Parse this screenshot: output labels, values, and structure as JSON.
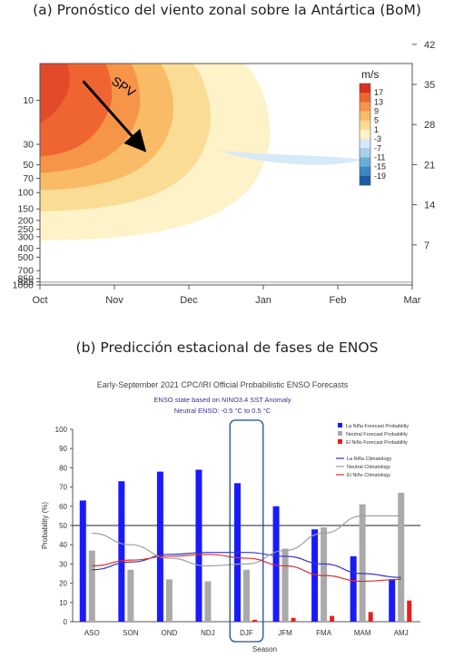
{
  "panel_titles": {
    "a": "(a) Pronóstico del viento zonal sobre la Antártica (BoM)",
    "b": "(b) Predicción estacional de fases de ENOS"
  },
  "chart_data": [
    {
      "type": "heatmap",
      "subtype": "filled-contour",
      "x_ticks": [
        "Oct",
        "Nov",
        "Dec",
        "Jan",
        "Feb",
        "Mar"
      ],
      "y_left_ticks": [
        "10",
        "30",
        "50",
        "70",
        "100",
        "150",
        "200",
        "250",
        "300",
        "400",
        "500",
        "700",
        "850",
        "925",
        "1000"
      ],
      "y_right_ticks": [
        "42",
        "35",
        "28",
        "21",
        "14",
        "7"
      ],
      "colorbar_unit": "m/s",
      "colorbar_levels": [
        "17",
        "13",
        "9",
        "5",
        "1",
        "-3",
        "-7",
        "-11",
        "-15",
        "-19"
      ],
      "colorbar_colors": [
        "#d7301f",
        "#ef6532",
        "#f69447",
        "#f9bb66",
        "#fbdc94",
        "#fdf2c8",
        "#d7e9f7",
        "#a6cfeb",
        "#6aaed8",
        "#3d87c2",
        "#1b5ba6"
      ],
      "annotation": "SPV",
      "arrow": {
        "from": {
          "month": "Oct+0.6",
          "pressure_hPa": 7
        },
        "to": {
          "month": "Nov+0.35",
          "pressure_hPa": 35
        }
      },
      "contours": [
        {
          "level_ms": 1,
          "color": "#fdf2c8"
        },
        {
          "level_ms": 5,
          "color": "#fbdc94"
        },
        {
          "level_ms": 9,
          "color": "#f9bb66"
        },
        {
          "level_ms": 13,
          "color": "#f69447"
        },
        {
          "level_ms": 17,
          "color": "#ef6532"
        },
        {
          "level_ms": 21,
          "color": "#e34a2a"
        }
      ]
    },
    {
      "type": "bar",
      "title": "Early-September 2021 CPC/IRI Official Probabilistic ENSO Forecasts",
      "subtitle_lines": [
        "ENSO state based on NINO3.4 SST Anomaly",
        "Neutral ENSO: -0.5 °C to 0.5 °C"
      ],
      "xlabel": "Season",
      "ylabel": "Probability (%)",
      "ylim": [
        0,
        100
      ],
      "y_ticks": [
        0,
        10,
        20,
        30,
        40,
        50,
        60,
        70,
        80,
        90,
        100
      ],
      "reference_line": 50,
      "categories": [
        "ASO",
        "SON",
        "OND",
        "NDJ",
        "DJF",
        "JFM",
        "FMA",
        "MAM",
        "AMJ"
      ],
      "highlighted_category": "DJF",
      "series": [
        {
          "name": "La Niña Forecast Probability",
          "color": "#1a1aff",
          "values": [
            63,
            73,
            78,
            79,
            72,
            60,
            48,
            34,
            22
          ]
        },
        {
          "name": "Neutral Forecast Probability",
          "color": "#aaaaaa",
          "values": [
            37,
            27,
            22,
            21,
            27,
            38,
            49,
            61,
            67
          ]
        },
        {
          "name": "El Niño Forecast Probability",
          "color": "#e8201a",
          "values": [
            0,
            0,
            0,
            0,
            1,
            2,
            3,
            5,
            11
          ]
        }
      ],
      "climatology": [
        {
          "name": "La Niña Climatology",
          "color": "#3535c8",
          "values": [
            27,
            31,
            35,
            36,
            36,
            34,
            30,
            25,
            23
          ]
        },
        {
          "name": "Neutral Climatology",
          "color": "#a0a0a0",
          "values": [
            46,
            40,
            33,
            29,
            30,
            37,
            46,
            55,
            55
          ]
        },
        {
          "name": "El Niño Climatology",
          "color": "#dd3030",
          "values": [
            29,
            32,
            34,
            35,
            33,
            29,
            24,
            21,
            22
          ]
        }
      ]
    }
  ]
}
